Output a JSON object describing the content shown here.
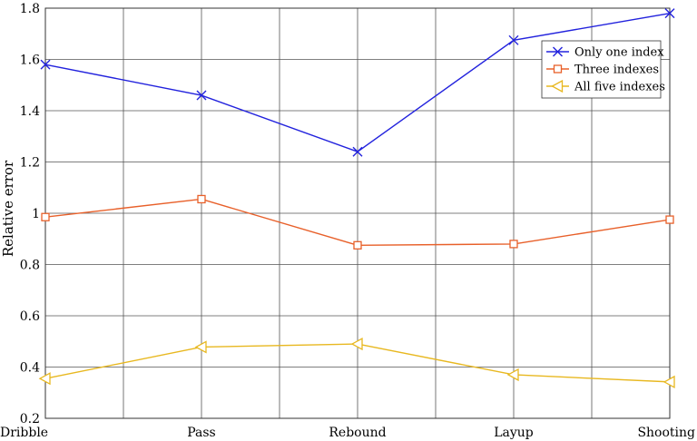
{
  "chart_data": {
    "type": "line",
    "categories": [
      "Dribble",
      "Pass",
      "Rebound",
      "Layup",
      "Shooting"
    ],
    "ylabel": "Relative error",
    "xlabel": "",
    "ylim": [
      0.2,
      1.8
    ],
    "yticks": [
      0.2,
      0.4,
      0.6,
      0.8,
      1,
      1.2,
      1.4,
      1.6,
      1.8
    ],
    "ytick_labels": [
      "0.2",
      "0.4",
      "0.6",
      "0.8",
      "1",
      "1.2",
      "1.4",
      "1.6",
      "1.8"
    ],
    "grid": true,
    "legend_position": "top-right",
    "series": [
      {
        "name": "Only one index",
        "values": [
          1.58,
          1.46,
          1.24,
          1.675,
          1.78
        ],
        "color": "#2222dd",
        "marker": "x"
      },
      {
        "name": "Three indexes",
        "values": [
          0.985,
          1.055,
          0.875,
          0.88,
          0.975
        ],
        "color": "#e8602a",
        "marker": "square"
      },
      {
        "name": "All five indexes",
        "values": [
          0.355,
          0.478,
          0.49,
          0.37,
          0.342
        ],
        "color": "#e8b820",
        "marker": "triangle-left"
      }
    ]
  }
}
